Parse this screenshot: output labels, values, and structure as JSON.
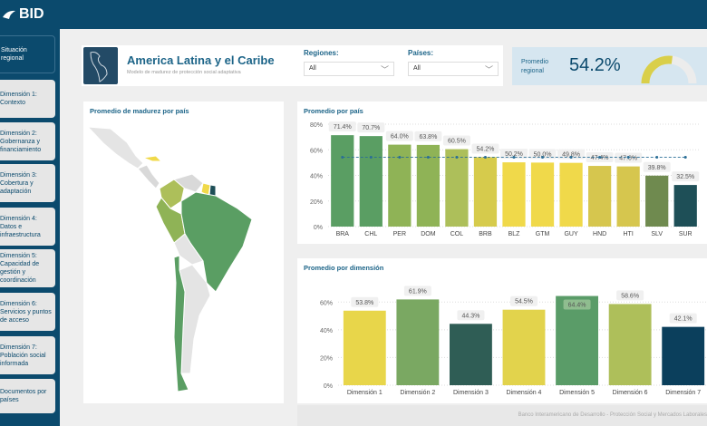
{
  "app": {
    "logo": "BID"
  },
  "sidebar": {
    "items": [
      {
        "label": "Situación regional"
      },
      {
        "label": "Dimensión 1: Contexto"
      },
      {
        "label": "Dimensión 2: Gobernanza y financiamiento"
      },
      {
        "label": "Dimensión 3: Cobertura y adaptación"
      },
      {
        "label": "Dimensión 4: Datos e infraestructura"
      },
      {
        "label": "Dimensión 5: Capacidad de gestión y coordinación"
      },
      {
        "label": "Dimensión 6: Servicios y puntos de acceso"
      },
      {
        "label": "Dimensión 7: Población social informada"
      },
      {
        "label": "Documentos por países"
      }
    ]
  },
  "header": {
    "title": "America Latina y el Caribe",
    "subtitle": "Modelo de madurez de protección social adaptativa",
    "regiones_label": "Regiones:",
    "regiones_value": "All",
    "paises_label": "Países:",
    "paises_value": "All"
  },
  "kpi": {
    "label": "Promedio regional",
    "value": "54.2%",
    "fraction": 0.542,
    "gauge_color": "#d9cf4a"
  },
  "map": {
    "title": "Promedio de madurez por país"
  },
  "chart_data": [
    {
      "type": "bar",
      "title": "Promedio por país",
      "categories": [
        "BRA",
        "CHL",
        "PER",
        "DOM",
        "COL",
        "BRB",
        "BLZ",
        "GTM",
        "GUY",
        "HND",
        "HTI",
        "SLV",
        "SUR"
      ],
      "values": [
        71.4,
        70.7,
        64.0,
        63.8,
        60.5,
        54.2,
        50.2,
        50.0,
        49.8,
        47.4,
        47.0,
        39.8,
        32.5
      ],
      "labels": [
        "71.4%",
        "70.7%",
        "64.0%",
        "63.8%",
        "60.5%",
        "54.2%",
        "50.2%",
        "50.0%",
        "49.8%",
        "47.4%",
        "47.0%",
        "39.8%",
        "32.5%"
      ],
      "colors": [
        "#5a9e63",
        "#5a9e63",
        "#8fb356",
        "#8fb356",
        "#adbf5a",
        "#d6cb4c",
        "#f0d94a",
        "#f0d94a",
        "#f0d94a",
        "#d6c64e",
        "#d6c64e",
        "#6f8a4f",
        "#1e4f57"
      ],
      "average": 54.2,
      "ylim": [
        0,
        80
      ],
      "yticks": [
        "0%",
        "20%",
        "40%",
        "60%",
        "80%"
      ]
    },
    {
      "type": "bar",
      "title": "Promedio por dimensión",
      "categories": [
        "Dimensión 1",
        "Dimensión 2",
        "Dimensión 3",
        "Dimensión 4",
        "Dimensión 5",
        "Dimensión 6",
        "Dimensión 7"
      ],
      "values": [
        53.8,
        61.9,
        44.3,
        54.5,
        64.4,
        58.6,
        42.1
      ],
      "labels": [
        "53.8%",
        "61.9%",
        "44.3%",
        "54.5%",
        "64.4%",
        "58.6%",
        "42.1%"
      ],
      "colors": [
        "#e8d64a",
        "#7aa862",
        "#2f5d55",
        "#e2d34c",
        "#5a9c68",
        "#aebf5a",
        "#0b3f5c"
      ],
      "ylim": [
        0,
        70
      ],
      "yticks": [
        "0%",
        "20%",
        "40%",
        "60%"
      ]
    }
  ],
  "footer": {
    "text": "Banco Interamericano de Desarrollo - Protección Social y Mercados Laborales"
  }
}
